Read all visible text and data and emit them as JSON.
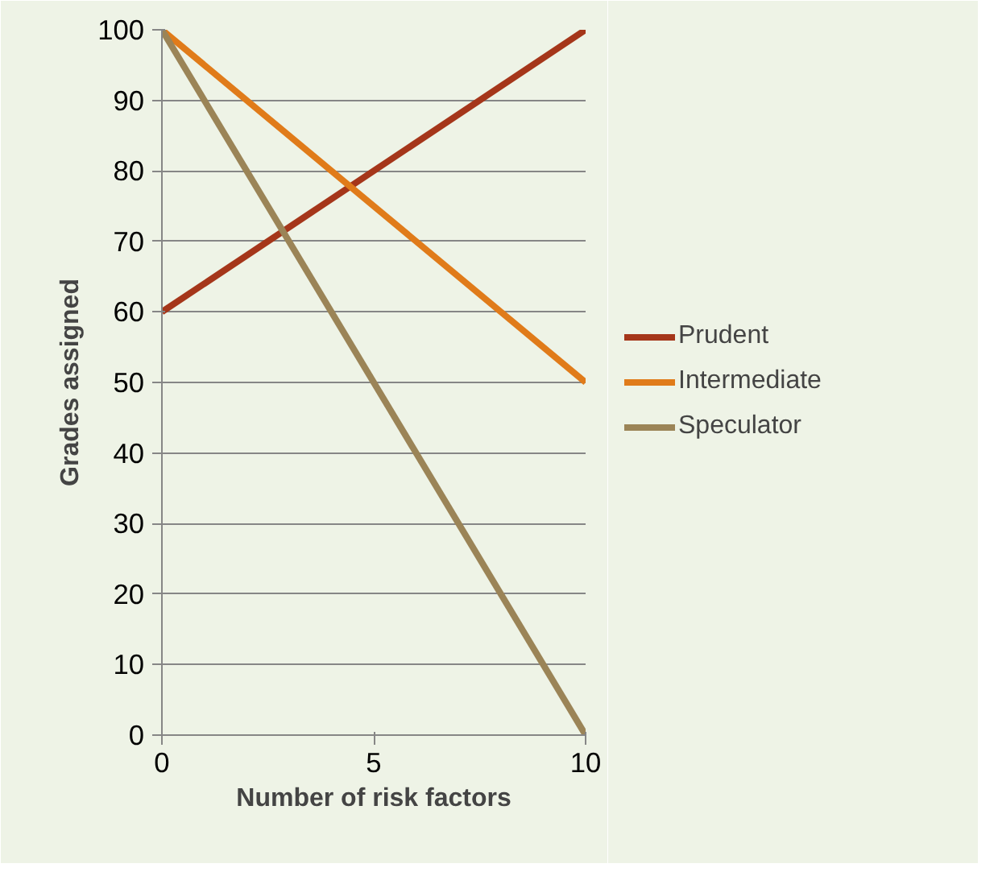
{
  "chart_data": {
    "type": "line",
    "xlabel": "Number of risk factors",
    "ylabel": "Grades assigned",
    "x": [
      0,
      10
    ],
    "series": [
      {
        "name": "Prudent",
        "color": "#a5361a",
        "values": [
          60,
          100
        ]
      },
      {
        "name": "Intermediate",
        "color": "#e07b1a",
        "values": [
          100,
          50
        ]
      },
      {
        "name": "Speculator",
        "color": "#9b8457",
        "values": [
          100,
          0
        ]
      }
    ],
    "xlim": [
      0,
      10
    ],
    "xticks": [
      0,
      5,
      10
    ],
    "ylim": [
      0,
      100
    ],
    "yticks": [
      0,
      10,
      20,
      30,
      40,
      50,
      60,
      70,
      80,
      90,
      100
    ],
    "grid": "y",
    "legend": "right",
    "line_style": "solid"
  }
}
